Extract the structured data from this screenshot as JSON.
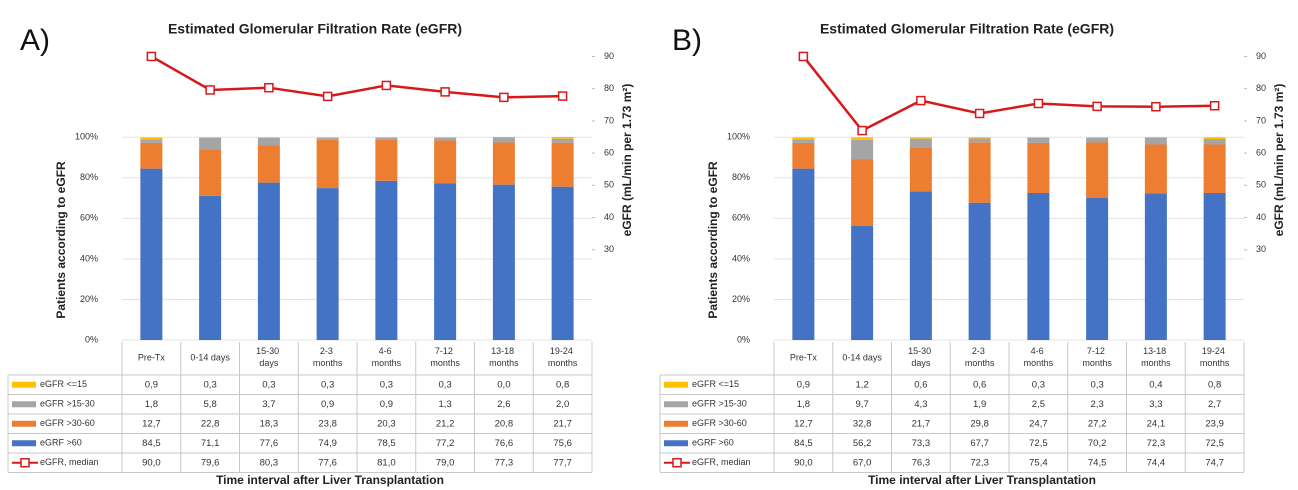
{
  "chart_data": [
    {
      "type": "stacked-bar-line",
      "panel": "A)",
      "title": "Estimated Glomerular Filtration Rate (eGFR)",
      "ylabel": "Patients according to eGFR",
      "y2label": "eGFR (mL/min per 1.73 m²)",
      "xlabel": "Time interval after Liver Transplantation",
      "categories": [
        "Pre-Tx",
        "0-14 days",
        "15-30 days",
        "2-3 months",
        "4-6 months",
        "7-12 months",
        "13-18 months",
        "19-24 months"
      ],
      "ylim": [
        0,
        143
      ],
      "yticks": [
        {
          "value": 0,
          "label": "0%"
        },
        {
          "value": 20,
          "label": "20%"
        },
        {
          "value": 40,
          "label": "40%"
        },
        {
          "value": 60,
          "label": "60%"
        },
        {
          "value": 80,
          "label": "80%"
        },
        {
          "value": 100,
          "label": "100%"
        }
      ],
      "y2lim": [
        2,
        92
      ],
      "y2ticks": [
        30,
        40,
        50,
        60,
        70,
        80,
        90
      ],
      "grid": true,
      "series": [
        {
          "name": "eGFR <=15",
          "color": "#ffc000",
          "values": [
            0.9,
            0.3,
            0.3,
            0.3,
            0.3,
            0.3,
            0.0,
            0.8
          ],
          "value_labels": [
            "0,9",
            "0,3",
            "0,3",
            "0,3",
            "0,3",
            "0,3",
            "0,0",
            "0,8"
          ]
        },
        {
          "name": "eGFR >15-30",
          "color": "#a5a5a5",
          "values": [
            1.8,
            5.8,
            3.7,
            0.9,
            0.9,
            1.3,
            2.6,
            2.0
          ],
          "value_labels": [
            "1,8",
            "5,8",
            "3,7",
            "0,9",
            "0,9",
            "1,3",
            "2,6",
            "2,0"
          ]
        },
        {
          "name": "eGFR >30-60",
          "color": "#ed7d31",
          "values": [
            12.7,
            22.8,
            18.3,
            23.8,
            20.3,
            21.2,
            20.8,
            21.7
          ],
          "value_labels": [
            "12,7",
            "22,8",
            "18,3",
            "23,8",
            "20,3",
            "21,2",
            "20,8",
            "21,7"
          ]
        },
        {
          "name": "eGRF >60",
          "color": "#4472c4",
          "values": [
            84.5,
            71.1,
            77.6,
            74.9,
            78.5,
            77.2,
            76.6,
            75.6
          ],
          "value_labels": [
            "84,5",
            "71,1",
            "77,6",
            "74,9",
            "78,5",
            "77,2",
            "76,6",
            "75,6"
          ]
        },
        {
          "name": "eGFR, median",
          "color": "#d7191c",
          "axis": "y2",
          "values": [
            90.0,
            79.6,
            80.3,
            77.6,
            81.0,
            79.0,
            77.3,
            77.7
          ],
          "value_labels": [
            "90,0",
            "79,6",
            "80,3",
            "77,6",
            "81,0",
            "79,0",
            "77,3",
            "77,7"
          ]
        }
      ]
    },
    {
      "type": "stacked-bar-line",
      "panel": "B)",
      "title": "Estimated Glomerular Filtration Rate (eGFR)",
      "ylabel": "Patients according to eGFR",
      "y2label": "eGFR (mL/min per 1.73 m²)",
      "xlabel": "Time interval after Liver Transplantation",
      "categories": [
        "Pre-Tx",
        "0-14 days",
        "15-30 days",
        "2-3 months",
        "4-6 months",
        "7-12 months",
        "13-18 months",
        "19-24 months"
      ],
      "ylim": [
        0,
        143
      ],
      "yticks": [
        {
          "value": 0,
          "label": "0%"
        },
        {
          "value": 20,
          "label": "20%"
        },
        {
          "value": 40,
          "label": "40%"
        },
        {
          "value": 60,
          "label": "60%"
        },
        {
          "value": 80,
          "label": "80%"
        },
        {
          "value": 100,
          "label": "100%"
        }
      ],
      "y2lim": [
        2,
        92
      ],
      "y2ticks": [
        30,
        40,
        50,
        60,
        70,
        80,
        90
      ],
      "grid": true,
      "series": [
        {
          "name": "eGFR <=15",
          "color": "#ffc000",
          "values": [
            0.9,
            1.2,
            0.6,
            0.6,
            0.3,
            0.3,
            0.4,
            0.8
          ],
          "value_labels": [
            "0,9",
            "1,2",
            "0,6",
            "0,6",
            "0,3",
            "0,3",
            "0,4",
            "0,8"
          ]
        },
        {
          "name": "eGFR >15-30",
          "color": "#a5a5a5",
          "values": [
            1.8,
            9.7,
            4.3,
            1.9,
            2.5,
            2.3,
            3.3,
            2.7
          ],
          "value_labels": [
            "1,8",
            "9,7",
            "4,3",
            "1,9",
            "2,5",
            "2,3",
            "3,3",
            "2,7"
          ]
        },
        {
          "name": "eGFR >30-60",
          "color": "#ed7d31",
          "values": [
            12.7,
            32.8,
            21.7,
            29.8,
            24.7,
            27.2,
            24.1,
            23.9
          ],
          "value_labels": [
            "12,7",
            "32,8",
            "21,7",
            "29,8",
            "24,7",
            "27,2",
            "24,1",
            "23,9"
          ]
        },
        {
          "name": "eGRF >60",
          "color": "#4472c4",
          "values": [
            84.5,
            56.2,
            73.3,
            67.7,
            72.5,
            70.2,
            72.3,
            72.5
          ],
          "value_labels": [
            "84,5",
            "56,2",
            "73,3",
            "67,7",
            "72,5",
            "70,2",
            "72,3",
            "72,5"
          ]
        },
        {
          "name": "eGFR, median",
          "color": "#d7191c",
          "axis": "y2",
          "values": [
            90.0,
            67.0,
            76.3,
            72.3,
            75.4,
            74.5,
            74.4,
            74.7
          ],
          "value_labels": [
            "90,0",
            "67,0",
            "76,3",
            "72,3",
            "75,4",
            "74,5",
            "74,4",
            "74,7"
          ]
        }
      ]
    }
  ]
}
